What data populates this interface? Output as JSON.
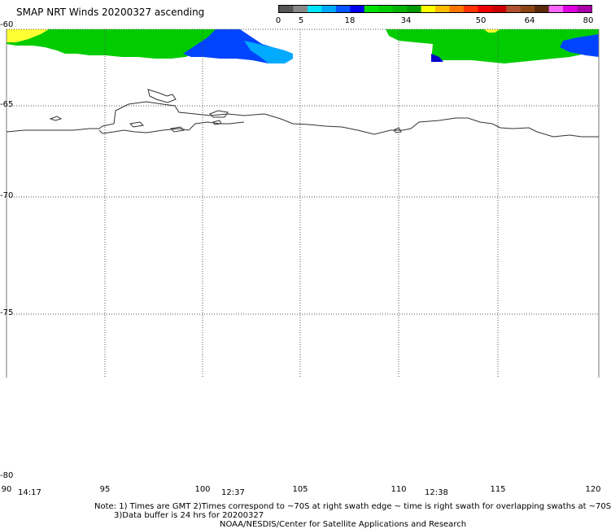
{
  "title": "SMAP NRT Winds 20200327 ascending",
  "colorbar": {
    "ticks": [
      "0",
      "5",
      "18",
      "34",
      "50",
      "64",
      "80"
    ],
    "segments": [
      {
        "color": "#555555"
      },
      {
        "color": "#888888"
      },
      {
        "color": "#00e5ff"
      },
      {
        "color": "#00aaff"
      },
      {
        "color": "#0055ff"
      },
      {
        "color": "#0000ee"
      },
      {
        "color": "#00e000"
      },
      {
        "color": "#00cc00"
      },
      {
        "color": "#00b300"
      },
      {
        "color": "#009900"
      },
      {
        "color": "#ffff00"
      },
      {
        "color": "#ffbb00"
      },
      {
        "color": "#ff7700"
      },
      {
        "color": "#ff3300"
      },
      {
        "color": "#ee0000"
      },
      {
        "color": "#cc0000"
      },
      {
        "color": "#b05030"
      },
      {
        "color": "#8b4513"
      },
      {
        "color": "#5a2a0a"
      },
      {
        "color": "#ff66ff"
      },
      {
        "color": "#dd00dd"
      },
      {
        "color": "#aa00aa"
      }
    ]
  },
  "lat_labels": [
    "-60",
    "-65",
    "-70",
    "-75",
    "-80"
  ],
  "lon_labels": [
    "90",
    "95",
    "100",
    "105",
    "110",
    "115",
    "120"
  ],
  "time_labels": [
    "14:17",
    "12:37",
    "12:38"
  ],
  "notes": {
    "line1": "Note: 1) Times are GMT 2)Times correspond to ~70S at right swath edge ~ time is right swath for overlapping swaths at ~70S",
    "line2": "3)Data buffer is 24 hrs for 20200327",
    "line3": "NOAA/NESDIS/Center for Satellite Applications and Research"
  },
  "colors": {
    "green": "#00cc00",
    "blue": "#0044ff",
    "yellow": "#ffff33",
    "coast": "#333333",
    "grid": "#555555"
  }
}
